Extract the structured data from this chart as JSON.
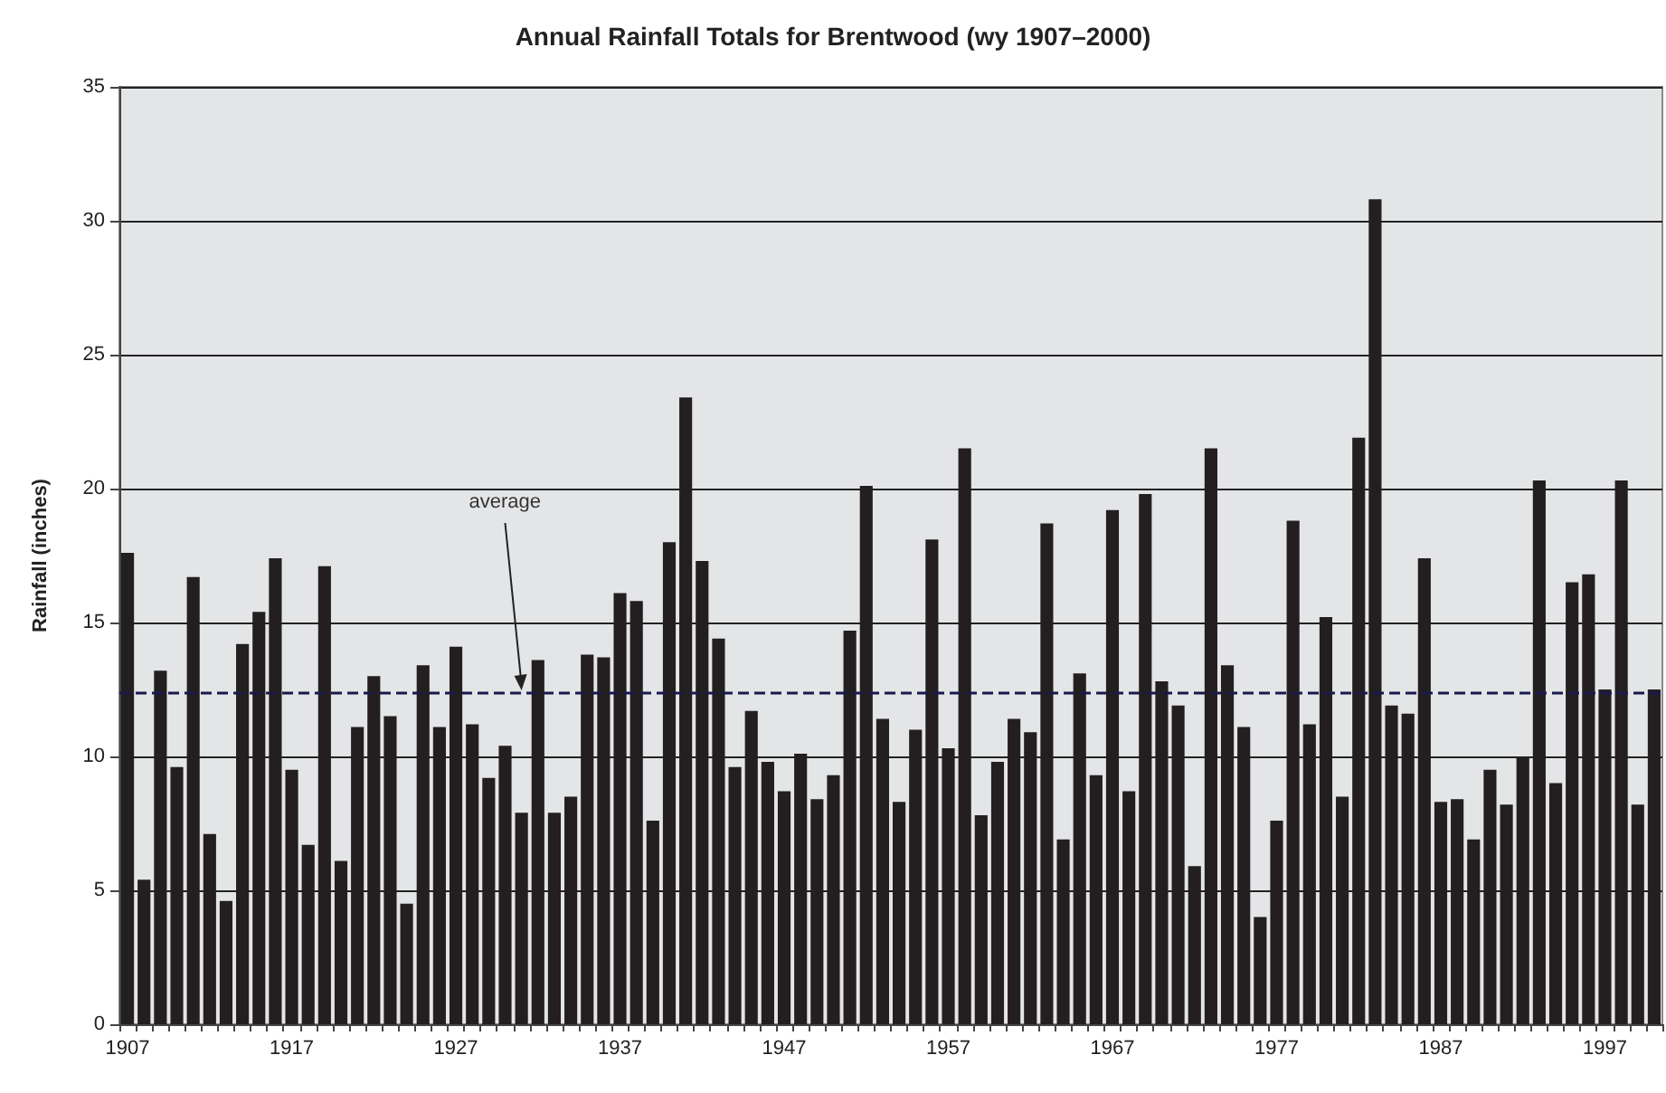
{
  "chart_data": {
    "type": "bar",
    "title": "Annual Rainfall Totals for Brentwood (wy 1907–2000)",
    "ylabel": "Rainfall (inches)",
    "categories": [
      "1907",
      null,
      null,
      null,
      null,
      null,
      null,
      null,
      null,
      null,
      "1917",
      null,
      null,
      null,
      null,
      null,
      null,
      null,
      null,
      null,
      "1927",
      null,
      null,
      null,
      null,
      null,
      null,
      null,
      null,
      null,
      "1937",
      null,
      null,
      null,
      null,
      null,
      null,
      null,
      null,
      null,
      "1947",
      null,
      null,
      null,
      null,
      null,
      null,
      null,
      null,
      null,
      "1957",
      null,
      null,
      null,
      null,
      null,
      null,
      null,
      null,
      null,
      "1967",
      null,
      null,
      null,
      null,
      null,
      null,
      null,
      null,
      null,
      "1977",
      null,
      null,
      null,
      null,
      null,
      null,
      null,
      null,
      null,
      "1987",
      null,
      null,
      null,
      null,
      null,
      null,
      null,
      null,
      null,
      "1997",
      null,
      null,
      null
    ],
    "values": [
      17.6,
      5.4,
      13.2,
      9.6,
      16.7,
      7.1,
      4.6,
      14.2,
      15.4,
      17.4,
      9.5,
      6.7,
      17.1,
      6.1,
      11.1,
      13.0,
      11.5,
      4.5,
      13.4,
      11.1,
      14.1,
      11.2,
      9.2,
      10.4,
      7.9,
      13.6,
      7.9,
      8.5,
      13.8,
      13.7,
      16.1,
      15.8,
      7.6,
      18.0,
      23.4,
      17.3,
      14.4,
      9.6,
      11.7,
      9.8,
      8.7,
      10.1,
      8.4,
      9.3,
      14.7,
      20.1,
      11.4,
      8.3,
      11.0,
      18.1,
      10.3,
      21.5,
      7.8,
      9.8,
      11.4,
      10.9,
      18.7,
      6.9,
      13.1,
      9.3,
      19.2,
      8.7,
      19.8,
      12.8,
      11.9,
      5.9,
      21.5,
      13.4,
      11.1,
      4.0,
      7.6,
      18.8,
      11.2,
      15.2,
      8.5,
      21.9,
      30.8,
      11.9,
      11.6,
      17.4,
      8.3,
      8.4,
      6.9,
      9.5,
      8.2,
      10.0,
      20.3,
      9.0,
      16.5,
      16.8,
      12.5,
      20.3,
      8.2,
      12.5
    ],
    "color": "#231f20",
    "ylim": [
      0,
      35
    ],
    "yticks": [
      0,
      5,
      10,
      15,
      20,
      25,
      30,
      35
    ],
    "grid": "y",
    "ref_lines": [
      {
        "axis": "y",
        "value": 12.4,
        "label": "average",
        "color": "#1a1a4a",
        "line_style": "dashed"
      }
    ]
  }
}
